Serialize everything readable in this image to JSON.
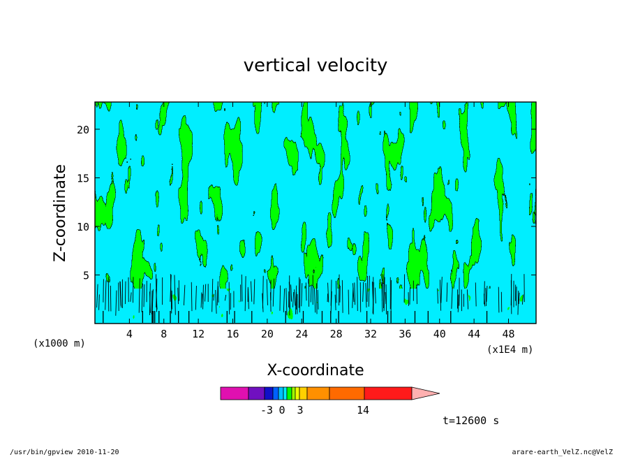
{
  "footer": {
    "left": "/usr/bin/gpview  2010-11-20",
    "right": "arare-earth_VelZ.nc@VelZ"
  },
  "time_label": "t=12600 s",
  "colors": {
    "positive_fill": "#00ff00",
    "negative_fill": "#00eeff",
    "contour_line": "#000000",
    "background": "#ffffff"
  },
  "chart_data": {
    "type": "heatmap",
    "title": "vertical velocity",
    "xlabel": "X-coordinate",
    "ylabel": "Z-coordinate",
    "x_unit_left": "(x1000 m)",
    "x_unit_right": "(x1E4 m)",
    "xlim": [
      0,
      51.2
    ],
    "ylim": [
      0,
      22.8
    ],
    "x_ticks": [
      4,
      8,
      12,
      16,
      20,
      24,
      28,
      32,
      36,
      40,
      44,
      48
    ],
    "y_ticks": [
      5,
      10,
      15,
      20
    ],
    "colorbar": {
      "colors": [
        "#e010b0",
        "#7010c0",
        "#1010c8",
        "#0060ff",
        "#00c0ff",
        "#00eeff",
        "#00ff00",
        "#a0ff00",
        "#f0ff00",
        "#ffd000",
        "#ff9000",
        "#ff6a00",
        "#ff1a1a",
        "#ff7a78",
        "#ffb0b0"
      ],
      "tick_labels": [
        "-3",
        "0",
        "3",
        "14"
      ],
      "tick_positions": [
        -3,
        0,
        3,
        14
      ]
    }
  }
}
